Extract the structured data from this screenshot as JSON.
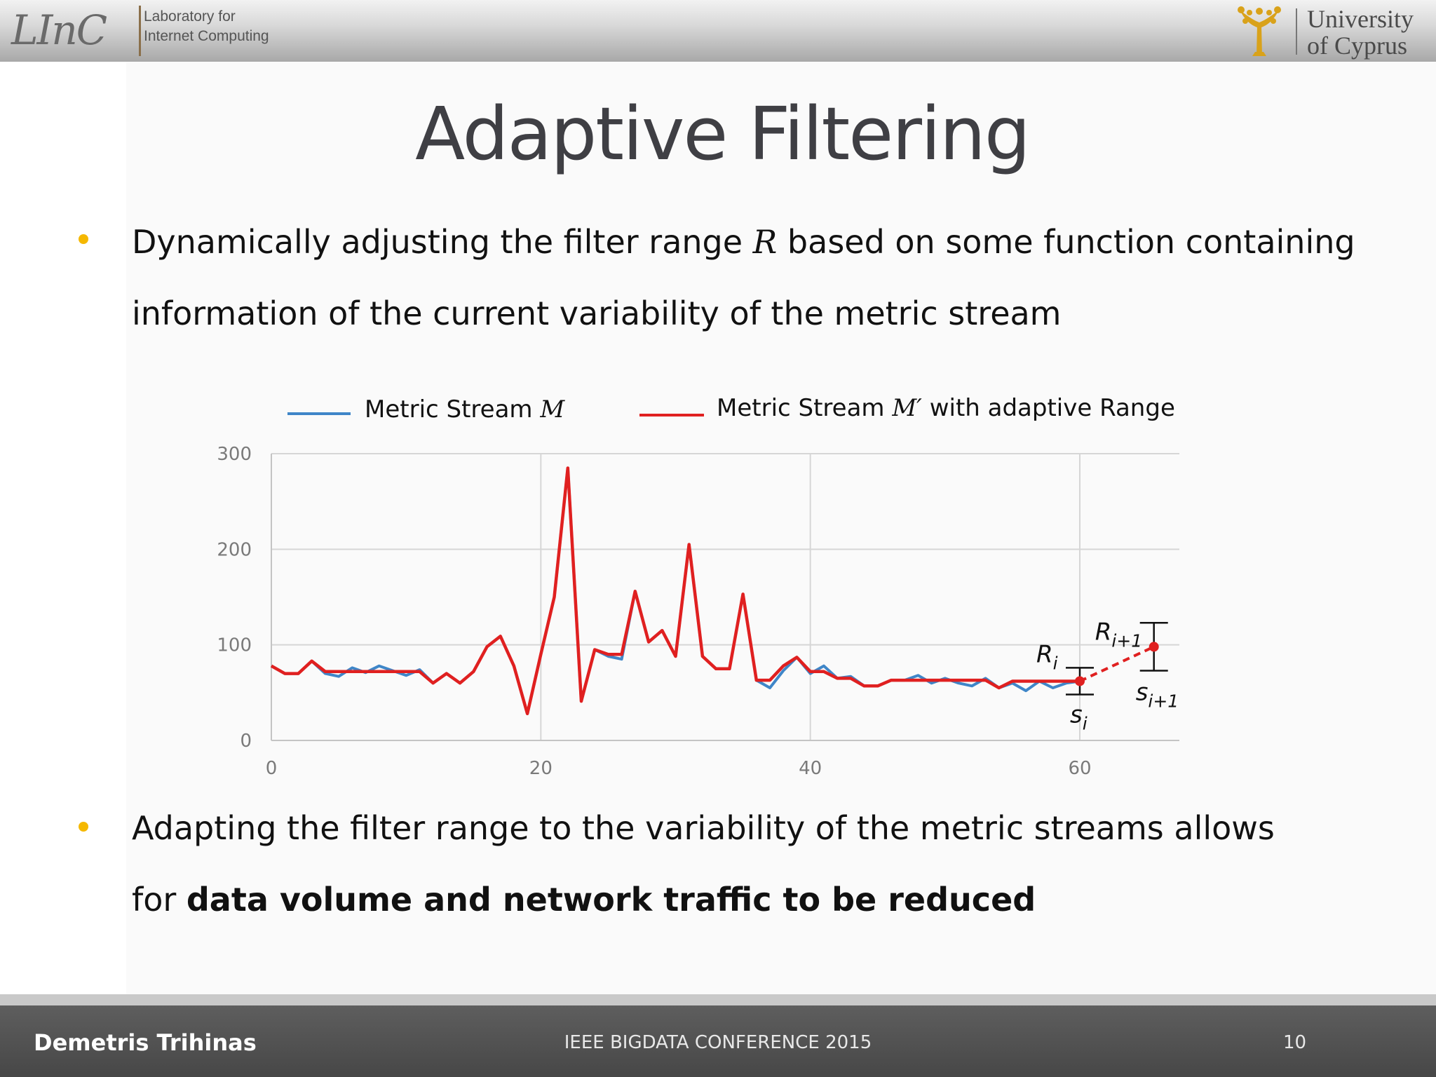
{
  "header": {
    "lab_logo_text": "LInC",
    "lab_name_line1": "Laboratory for",
    "lab_name_line2": "Internet Computing",
    "university_line1": "University",
    "university_line2": "of Cyprus"
  },
  "slide": {
    "title": "Adaptive Filtering",
    "bullet1": {
      "part1": "Dynamically adjusting the filter range ",
      "math": "R",
      "part2": " based on some function containing",
      "line2": "information of the current variability of the metric stream"
    },
    "bullet2": {
      "line1": "Adapting the filter range to the variability of the metric streams allows",
      "line2_prefix": "for ",
      "line2_bold": "data volume and network traffic to be reduced"
    },
    "legend": {
      "series1_label": "Metric Stream ",
      "series1_math": "M",
      "series2_label": "Metric Stream ",
      "series2_math": "M′",
      "series2_suffix": " with adaptive Range"
    },
    "annotations": {
      "r_i": "R",
      "r_i_sub": "i",
      "r_i1": "R",
      "r_i1_sub": "i+1",
      "s_i": "s",
      "s_i_sub": "i",
      "s_i1": "s",
      "s_i1_sub": "i+1"
    }
  },
  "footer": {
    "author": "Demetris Trihinas",
    "conference": "IEEE BIGDATA CONFERENCE 2015",
    "page_number": "10"
  },
  "chart_data": {
    "type": "line",
    "xlim": [
      0,
      67
    ],
    "ylim": [
      0,
      300
    ],
    "xticks": [
      0,
      20,
      40,
      60
    ],
    "yticks": [
      0,
      100,
      200,
      300
    ],
    "grid": true,
    "legend_position": "top",
    "series": [
      {
        "name": "Metric Stream M",
        "color": "#3f86c8",
        "x": [
          0,
          1,
          2,
          3,
          4,
          5,
          6,
          7,
          8,
          9,
          10,
          11,
          12,
          13,
          14,
          15,
          16,
          17,
          18,
          19,
          20,
          21,
          22,
          23,
          24,
          25,
          26,
          27,
          28,
          29,
          30,
          31,
          32,
          33,
          34,
          35,
          36,
          37,
          38,
          39,
          40,
          41,
          42,
          43,
          44,
          45,
          46,
          47,
          48,
          49,
          50,
          51,
          52,
          53,
          54,
          55,
          56,
          57,
          58,
          59,
          60
        ],
        "y": [
          78,
          70,
          70,
          83,
          70,
          67,
          76,
          71,
          78,
          73,
          68,
          74,
          60,
          70,
          60,
          72,
          98,
          109,
          78,
          28,
          90,
          150,
          285,
          41,
          95,
          88,
          85,
          156,
          103,
          115,
          88,
          205,
          88,
          75,
          75,
          153,
          63,
          55,
          73,
          87,
          70,
          78,
          65,
          67,
          57,
          57,
          63,
          63,
          68,
          60,
          65,
          60,
          57,
          65,
          55,
          60,
          52,
          62,
          55,
          60,
          62
        ]
      },
      {
        "name": "Metric Stream M′ with adaptive Range",
        "color": "#e02020",
        "x": [
          0,
          1,
          2,
          3,
          4,
          5,
          6,
          7,
          8,
          9,
          10,
          11,
          12,
          13,
          14,
          15,
          16,
          17,
          18,
          19,
          20,
          21,
          22,
          23,
          24,
          25,
          26,
          27,
          28,
          29,
          30,
          31,
          32,
          33,
          34,
          35,
          36,
          37,
          38,
          39,
          40,
          41,
          42,
          43,
          44,
          45,
          46,
          47,
          48,
          49,
          50,
          51,
          52,
          53,
          54,
          55,
          56,
          57,
          58,
          59,
          60
        ],
        "y": [
          78,
          70,
          70,
          83,
          72,
          72,
          72,
          72,
          72,
          72,
          72,
          72,
          60,
          70,
          60,
          72,
          98,
          109,
          78,
          28,
          90,
          150,
          285,
          41,
          95,
          90,
          90,
          156,
          103,
          115,
          88,
          205,
          88,
          75,
          75,
          153,
          63,
          63,
          78,
          87,
          72,
          72,
          65,
          65,
          57,
          57,
          63,
          63,
          63,
          63,
          63,
          63,
          63,
          63,
          55,
          62,
          62,
          62,
          62,
          62,
          62
        ]
      }
    ],
    "adaptive_range_points": [
      {
        "x": 60,
        "y": 62,
        "range": 14
      },
      {
        "x": 65.5,
        "y": 98,
        "range": 25
      }
    ]
  }
}
